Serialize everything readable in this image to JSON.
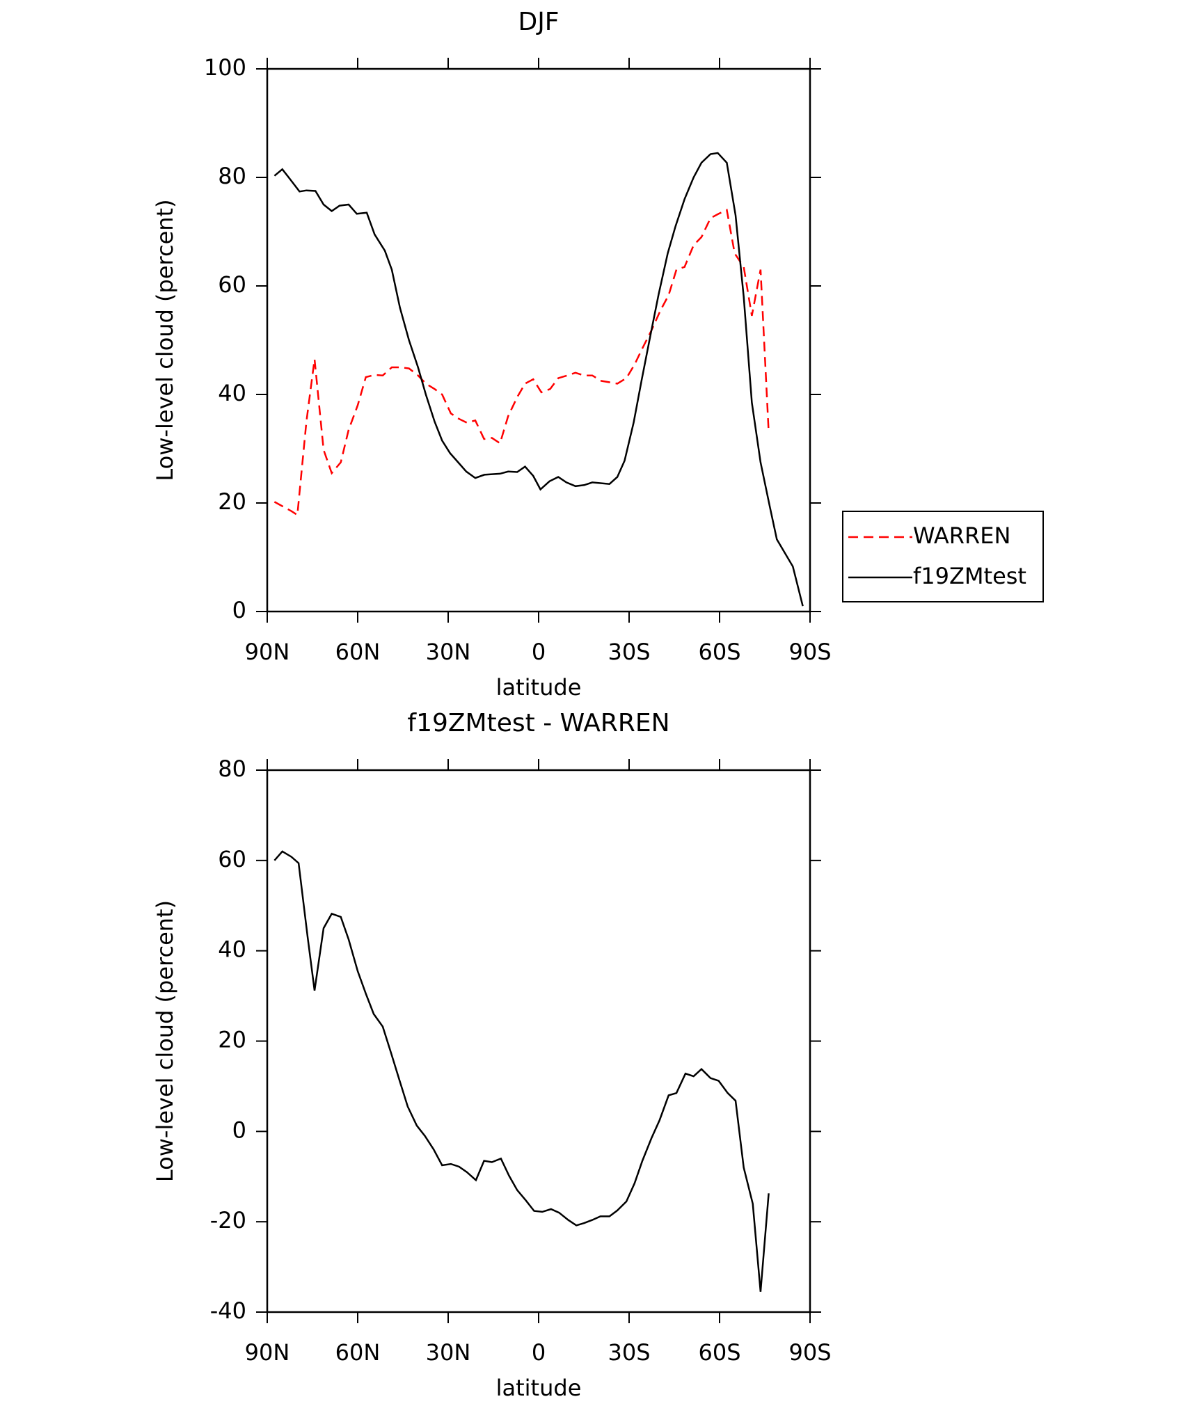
{
  "chart_data": [
    {
      "type": "line",
      "title": "DJF",
      "xlabel": "latitude",
      "ylabel": "Low-level cloud (percent)",
      "xlim": [
        90,
        -90
      ],
      "ylim": [
        0,
        100
      ],
      "xticks": [
        {
          "value": 90,
          "label": "90N"
        },
        {
          "value": 60,
          "label": "60N"
        },
        {
          "value": 30,
          "label": "30N"
        },
        0,
        {
          "value": -30,
          "label": "30S"
        },
        {
          "value": -60,
          "label": "60S"
        },
        {
          "value": -90,
          "label": "90S"
        }
      ],
      "yticks": [
        0,
        20,
        40,
        60,
        80,
        100
      ],
      "legend": "outside right",
      "series": [
        {
          "name": "WARREN",
          "color": "#ff0000",
          "dashed": true,
          "x": [
            87.6,
            82,
            80,
            77,
            74.3,
            71.3,
            68.6,
            65.6,
            63,
            60,
            57.3,
            54.4,
            51.7,
            48.7,
            45.7,
            43,
            40,
            37.4,
            34.5,
            32,
            29.1,
            26.4,
            23.8,
            21,
            18.1,
            15.5,
            12.8,
            10.1,
            7.1,
            4.5,
            1.8,
            -0.9,
            -3.8,
            -6.5,
            -9.5,
            -12.2,
            -15.1,
            -17.8,
            -20.8,
            -26.1,
            -29.1,
            -31.8,
            -34.4,
            -37.4,
            -40.4,
            -43.1,
            -45.7,
            -48.4,
            -51.4,
            -54,
            -57,
            -59.7,
            -62.4,
            -65,
            -68,
            -70.7,
            -73.6,
            -76.3
          ],
          "values": [
            20.2,
            18.5,
            17.8,
            35,
            46.5,
            29.8,
            25.5,
            27.5,
            33.5,
            38,
            43.2,
            43.6,
            43.5,
            45,
            45,
            44.8,
            43.5,
            42,
            41,
            40,
            36.5,
            35.5,
            34.8,
            35.2,
            31.8,
            32,
            31,
            36,
            39.5,
            42,
            42.8,
            40.4,
            41,
            43,
            43.5,
            44,
            43.5,
            43.5,
            42.5,
            42,
            43,
            45.5,
            48.5,
            51.8,
            55.5,
            58.3,
            63,
            63.5,
            67.5,
            69,
            72.5,
            73.3,
            74,
            66,
            63.5,
            54.5,
            63,
            33
          ]
        },
        {
          "name": "f19ZMtest",
          "color": "#000000",
          "dashed": false,
          "x": [
            87.6,
            85,
            82.6,
            79.3,
            77,
            74,
            71.3,
            68.6,
            66,
            63,
            60.3,
            57,
            54.4,
            51,
            48.7,
            46,
            43,
            40,
            37.4,
            34.5,
            32,
            29.4,
            26.7,
            24,
            21,
            18,
            12.8,
            10.1,
            7.1,
            4.5,
            1.8,
            -0.6,
            -3.6,
            -6.5,
            -9.2,
            -12.2,
            -15.1,
            -17.8,
            -23.5,
            -26.1,
            -28.5,
            -31.5,
            -34.1,
            -37.1,
            -39.8,
            -42.8,
            -45.4,
            -48.4,
            -51.4,
            -54,
            -57,
            -59.4,
            -62.4,
            -65.3,
            -68,
            -70.7,
            -73.6,
            -76.6,
            -79,
            -84.3,
            -87.6
          ],
          "values": [
            80.3,
            81.5,
            79.8,
            77.4,
            77.6,
            77.5,
            75,
            73.8,
            74.8,
            75,
            73.3,
            73.5,
            69.5,
            66.5,
            63,
            56,
            50,
            45,
            40,
            35,
            31.5,
            29.2,
            27.5,
            25.8,
            24.6,
            25.2,
            25.4,
            25.8,
            25.7,
            26.7,
            25,
            22.5,
            24,
            24.8,
            23.8,
            23.1,
            23.3,
            23.8,
            23.5,
            24.8,
            27.8,
            34.8,
            42.5,
            51,
            58.5,
            66,
            71,
            76,
            80,
            82.7,
            84.3,
            84.5,
            82.7,
            73,
            58,
            38.5,
            27.5,
            19.5,
            13.3,
            8.3,
            1
          ]
        }
      ]
    },
    {
      "type": "line",
      "title": "f19ZMtest - WARREN",
      "xlabel": "latitude",
      "ylabel": "Low-level cloud (percent)",
      "xlim": [
        90,
        -90
      ],
      "ylim": [
        -40,
        80
      ],
      "xticks": [
        {
          "value": 90,
          "label": "90N"
        },
        {
          "value": 60,
          "label": "60N"
        },
        {
          "value": 30,
          "label": "30N"
        },
        0,
        {
          "value": -30,
          "label": "30S"
        },
        {
          "value": -60,
          "label": "60S"
        },
        {
          "value": -90,
          "label": "90S"
        }
      ],
      "yticks": [
        -40,
        -20,
        0,
        20,
        40,
        60,
        80
      ],
      "series": [
        {
          "color": "#000000",
          "dashed": false,
          "x": [
            87.6,
            85,
            82,
            79.6,
            76.6,
            74.3,
            71.3,
            68.6,
            65.6,
            63,
            60,
            57.3,
            54.7,
            51.7,
            49,
            46,
            43.4,
            40.4,
            37.7,
            34.8,
            32,
            29.1,
            26.4,
            23.8,
            20.8,
            18.1,
            15.5,
            12.5,
            9.8,
            7.1,
            4.2,
            1.5,
            -1.2,
            -4.1,
            -6.8,
            -9.8,
            -12.5,
            -15.1,
            -17.8,
            -20.5,
            -23.5,
            -26.1,
            -29.1,
            -31.8,
            -34.4,
            -37.4,
            -40.1,
            -43.1,
            -45.7,
            -48.7,
            -51.4,
            -54,
            -57,
            -59.7,
            -62.7,
            -65.3,
            -68,
            -71,
            -73.6,
            -76.3
          ],
          "values": [
            60,
            62,
            60.8,
            59.4,
            43,
            31.2,
            45,
            48.2,
            47.5,
            42.5,
            35.5,
            30.5,
            26,
            23.2,
            17.5,
            11,
            5.5,
            1.3,
            -1,
            -4,
            -7.5,
            -7.2,
            -7.8,
            -9,
            -10.8,
            -6.5,
            -6.8,
            -6,
            -9.8,
            -13,
            -15.3,
            -17.6,
            -17.8,
            -17.2,
            -18,
            -19.6,
            -20.8,
            -20.3,
            -19.6,
            -18.8,
            -18.8,
            -17.5,
            -15.5,
            -11.5,
            -6.5,
            -1.5,
            2.5,
            8,
            8.5,
            12.8,
            12.2,
            13.8,
            11.8,
            11.2,
            8.5,
            6.8,
            -8,
            -16,
            -35.5,
            -13.7
          ]
        }
      ]
    }
  ]
}
